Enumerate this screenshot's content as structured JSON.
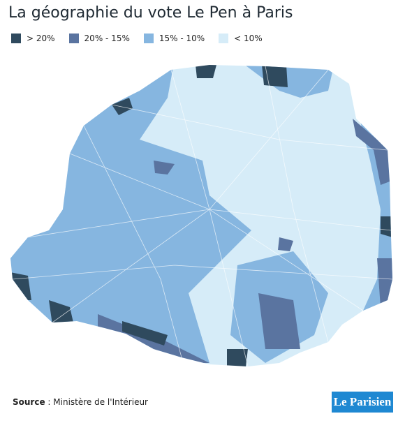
{
  "title": "La géographie du vote Le Pen à Paris",
  "legend": [
    {
      "label": "> 20%",
      "color": "#2f4a5e"
    },
    {
      "label": "20% - 15%",
      "color": "#5a74a0"
    },
    {
      "label": "15% - 10%",
      "color": "#86b6e0"
    },
    {
      "label": "< 10%",
      "color": "#d6ecf8"
    }
  ],
  "source": {
    "label": "Source",
    "text": " : Ministère de l'Intérieur"
  },
  "logo": "Le Parisien"
}
